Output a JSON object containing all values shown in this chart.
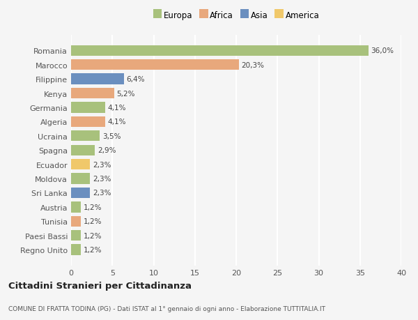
{
  "categories": [
    "Romania",
    "Marocco",
    "Filippine",
    "Kenya",
    "Germania",
    "Algeria",
    "Ucraina",
    "Spagna",
    "Ecuador",
    "Moldova",
    "Sri Lanka",
    "Austria",
    "Tunisia",
    "Paesi Bassi",
    "Regno Unito"
  ],
  "values": [
    36.0,
    20.3,
    6.4,
    5.2,
    4.1,
    4.1,
    3.5,
    2.9,
    2.3,
    2.3,
    2.3,
    1.2,
    1.2,
    1.2,
    1.2
  ],
  "labels": [
    "36,0%",
    "20,3%",
    "6,4%",
    "5,2%",
    "4,1%",
    "4,1%",
    "3,5%",
    "2,9%",
    "2,3%",
    "2,3%",
    "2,3%",
    "1,2%",
    "1,2%",
    "1,2%",
    "1,2%"
  ],
  "colors": [
    "#a8c17c",
    "#e8a87c",
    "#6b8fbf",
    "#e8a87c",
    "#a8c17c",
    "#e8a87c",
    "#a8c17c",
    "#a8c17c",
    "#f0c86a",
    "#a8c17c",
    "#6b8fbf",
    "#a8c17c",
    "#e8a87c",
    "#a8c17c",
    "#a8c17c"
  ],
  "legend_labels": [
    "Europa",
    "Africa",
    "Asia",
    "America"
  ],
  "legend_colors": [
    "#a8c17c",
    "#e8a87c",
    "#6b8fbf",
    "#f0c86a"
  ],
  "xlim": [
    0,
    40
  ],
  "xticks": [
    0,
    5,
    10,
    15,
    20,
    25,
    30,
    35,
    40
  ],
  "title": "Cittadini Stranieri per Cittadinanza",
  "subtitle": "COMUNE DI FRATTA TODINA (PG) - Dati ISTAT al 1° gennaio di ogni anno - Elaborazione TUTTITALIA.IT",
  "bg_color": "#f5f5f5",
  "grid_color": "#ffffff",
  "bar_height": 0.75
}
